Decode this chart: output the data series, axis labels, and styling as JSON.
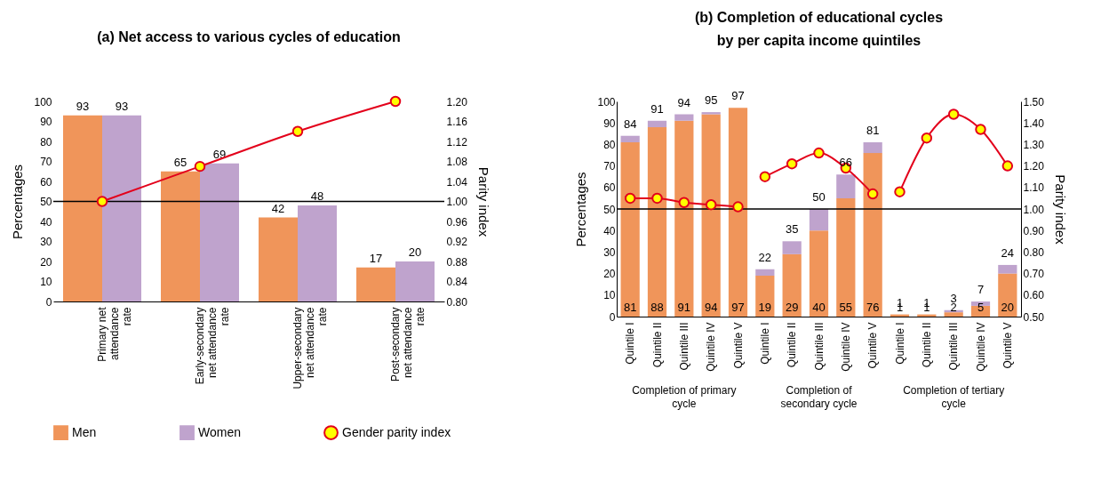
{
  "chart_data": [
    {
      "type": "bar",
      "title": "(a) Net access to various cycles of education",
      "ylabel": "Percentages",
      "y2label": "Parity index",
      "categories": [
        "Primary net attendance rate",
        "Early-secondary net attendance rate",
        "Upper-secondary net attendance rate",
        "Post-secondary net attendance rate"
      ],
      "series": [
        {
          "name": "Men",
          "color": "#f0955a",
          "values": [
            93,
            65,
            42,
            17
          ],
          "value_labels": [
            "93",
            "65",
            "42",
            "17"
          ]
        },
        {
          "name": "Women",
          "color": "#bfa3cd",
          "values": [
            93,
            69,
            48,
            20
          ],
          "value_labels": [
            "93",
            "69",
            "48",
            "20"
          ]
        },
        {
          "name": "Gender parity index",
          "type": "line",
          "axis": "y2",
          "color": "#e3001b",
          "values": [
            1.0,
            1.07,
            1.14,
            1.2
          ]
        }
      ],
      "ylim": [
        0,
        100
      ],
      "yticks": [
        0,
        10,
        20,
        30,
        40,
        50,
        60,
        70,
        80,
        90,
        100
      ],
      "y2lim": [
        0.8,
        1.2
      ],
      "y2ticks": [
        {
          "value": 0.8,
          "label": "0.80"
        },
        {
          "value": 0.84,
          "label": "0.84"
        },
        {
          "value": 0.88,
          "label": "0.88"
        },
        {
          "value": 0.92,
          "label": "0.92"
        },
        {
          "value": 0.96,
          "label": "0.96"
        },
        {
          "value": 1.0,
          "label": "1.00"
        },
        {
          "value": 1.04,
          "label": "1.04"
        },
        {
          "value": 1.08,
          "label": "1.08"
        },
        {
          "value": 1.12,
          "label": "1.12"
        },
        {
          "value": 1.16,
          "label": "1.16"
        },
        {
          "value": 1.2,
          "label": "1.20"
        }
      ],
      "ref_lines": [
        {
          "axis": "y2",
          "value": 1.0,
          "color": "#000000"
        }
      ],
      "marker": "circle",
      "legend": "bottom"
    },
    {
      "type": "bar",
      "title": "(b) Completion of educational cycles by per capita income quintiles",
      "ylabel": "Percentages",
      "y2label": "Parity index",
      "stacked": true,
      "categories": [
        "Quintile I",
        "Quintile II",
        "Quintile III",
        "Quintile IV",
        "Quintile V",
        "Quintile I",
        "Quintile II",
        "Quintile III",
        "Quintile IV",
        "Quintile V",
        "Quintile I",
        "Quintile II",
        "Quintile III",
        "Quintile IV",
        "Quintile V"
      ],
      "series": [
        {
          "name": "Men",
          "color": "#f0955a",
          "values": [
            81,
            88,
            91,
            94,
            97,
            19,
            29,
            40,
            55,
            76,
            1,
            1,
            2,
            5,
            20
          ],
          "value_labels": [
            "81",
            "88",
            "91",
            "94",
            "97",
            "19",
            "29",
            "40",
            "55",
            "76",
            "1",
            "1",
            "2",
            "5",
            "20"
          ]
        },
        {
          "name": "Women",
          "color": "#bfa3cd",
          "values": [
            3,
            3,
            3,
            1,
            0,
            3,
            6,
            10,
            11,
            5,
            0,
            0,
            1,
            2,
            4
          ]
        },
        {
          "name": "Gender parity index",
          "type": "line",
          "axis": "y2",
          "color": "#e3001b",
          "values": [
            1.05,
            1.05,
            1.03,
            1.02,
            1.01,
            null,
            null,
            null,
            null,
            null,
            null,
            null,
            null,
            null,
            null
          ]
        },
        {
          "name": "Gender parity index",
          "type": "line",
          "axis": "y2",
          "color": "#e3001b",
          "values": [
            null,
            null,
            null,
            null,
            null,
            1.15,
            1.21,
            1.26,
            1.19,
            1.07,
            null,
            null,
            null,
            null,
            null
          ]
        },
        {
          "name": "Gender parity index",
          "type": "line",
          "axis": "y2",
          "color": "#e3001b",
          "values": [
            null,
            null,
            null,
            null,
            null,
            null,
            null,
            null,
            null,
            null,
            1.08,
            1.33,
            1.44,
            1.37,
            1.2
          ]
        }
      ],
      "totals": [
        "84",
        "91",
        "94",
        "95",
        "97",
        "22",
        "35",
        "50",
        "66",
        "81",
        "1",
        "1",
        "3",
        "7",
        "24"
      ],
      "annotations": [
        "Completion of primary cycle",
        "Completion of secondary cycle",
        "Completion of tertiary cycle"
      ],
      "ylim": [
        0,
        100
      ],
      "yticks": [
        0,
        10,
        20,
        30,
        40,
        50,
        60,
        70,
        80,
        90,
        100
      ],
      "y2lim": [
        0.5,
        1.5
      ],
      "y2ticks": [
        {
          "value": 0.5,
          "label": "0.50"
        },
        {
          "value": 0.6,
          "label": "0.60"
        },
        {
          "value": 0.7,
          "label": "0.70"
        },
        {
          "value": 0.8,
          "label": "0.80"
        },
        {
          "value": 0.9,
          "label": "0.90"
        },
        {
          "value": 1.0,
          "label": "1.00"
        },
        {
          "value": 1.1,
          "label": "1.10"
        },
        {
          "value": 1.2,
          "label": "1.20"
        },
        {
          "value": 1.3,
          "label": "1.30"
        },
        {
          "value": 1.4,
          "label": "1.40"
        },
        {
          "value": 1.5,
          "label": "1.50"
        }
      ],
      "ref_lines": [
        {
          "axis": "y2",
          "value": 1.0,
          "color": "#000000"
        }
      ],
      "marker": "circle",
      "legend": "bottom"
    }
  ]
}
